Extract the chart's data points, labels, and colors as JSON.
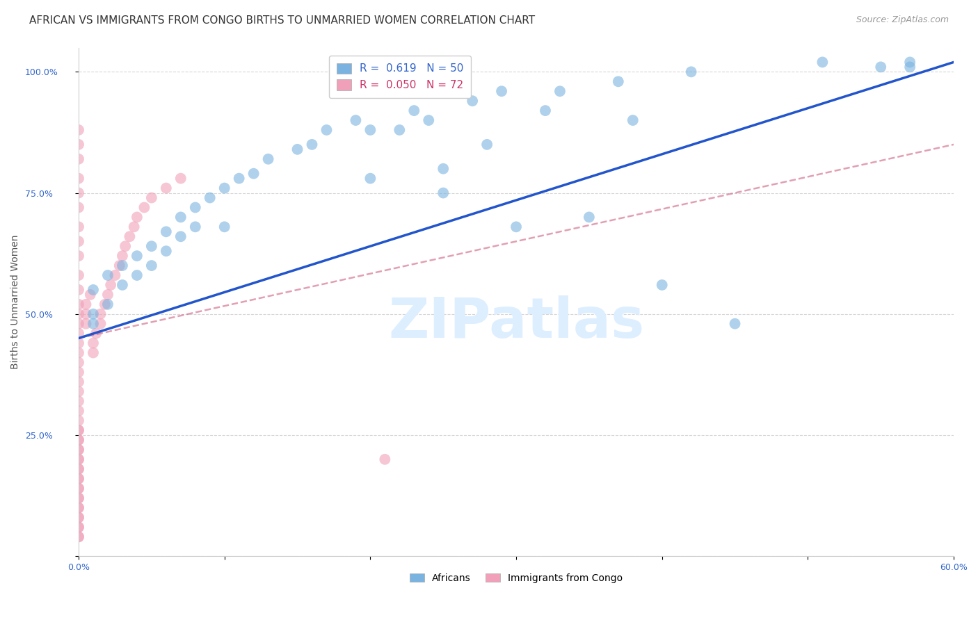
{
  "title": "AFRICAN VS IMMIGRANTS FROM CONGO BIRTHS TO UNMARRIED WOMEN CORRELATION CHART",
  "source": "Source: ZipAtlas.com",
  "ylabel": "Births to Unmarried Women",
  "x_min": 0.0,
  "x_max": 0.6,
  "y_min": 0.0,
  "y_max": 1.05,
  "x_tick_positions": [
    0.0,
    0.1,
    0.2,
    0.3,
    0.4,
    0.5,
    0.6
  ],
  "x_tick_labels": [
    "0.0%",
    "",
    "",
    "",
    "",
    "",
    "60.0%"
  ],
  "y_tick_positions": [
    0.0,
    0.25,
    0.5,
    0.75,
    1.0
  ],
  "y_tick_labels": [
    "",
    "25.0%",
    "50.0%",
    "75.0%",
    "100.0%"
  ],
  "legend_r_entries": [
    {
      "label": "R =  0.619   N = 50",
      "color": "#5b9bd5"
    },
    {
      "label": "R =  0.050   N = 72",
      "color": "#ee7fa0"
    }
  ],
  "blue_color": "#7ab3e0",
  "pink_color": "#f0a0b8",
  "blue_line_color": "#2255cc",
  "pink_line_color": "#d06080",
  "grid_color": "#cccccc",
  "background_color": "#ffffff",
  "watermark": "ZIPatlas",
  "watermark_color": "#ddeeff",
  "title_fontsize": 11,
  "axis_label_fontsize": 10,
  "tick_fontsize": 9,
  "legend_fontsize": 11,
  "source_fontsize": 9,
  "af_x": [
    0.01,
    0.01,
    0.01,
    0.02,
    0.02,
    0.03,
    0.03,
    0.04,
    0.04,
    0.05,
    0.05,
    0.06,
    0.06,
    0.07,
    0.07,
    0.08,
    0.08,
    0.09,
    0.1,
    0.1,
    0.11,
    0.12,
    0.13,
    0.15,
    0.16,
    0.17,
    0.19,
    0.2,
    0.22,
    0.23,
    0.24,
    0.25,
    0.27,
    0.29,
    0.3,
    0.33,
    0.35,
    0.37,
    0.4,
    0.42,
    0.45,
    0.51,
    0.55,
    0.57,
    0.57,
    0.2,
    0.25,
    0.28,
    0.32,
    0.38
  ],
  "af_y": [
    0.5,
    0.55,
    0.48,
    0.58,
    0.52,
    0.6,
    0.56,
    0.62,
    0.58,
    0.64,
    0.6,
    0.67,
    0.63,
    0.7,
    0.66,
    0.68,
    0.72,
    0.74,
    0.76,
    0.68,
    0.78,
    0.79,
    0.82,
    0.84,
    0.85,
    0.88,
    0.9,
    0.78,
    0.88,
    0.92,
    0.9,
    0.75,
    0.94,
    0.96,
    0.68,
    0.96,
    0.7,
    0.98,
    0.56,
    1.0,
    0.48,
    1.02,
    1.01,
    1.02,
    1.01,
    0.88,
    0.8,
    0.85,
    0.92,
    0.9
  ],
  "co_x": [
    0.0,
    0.0,
    0.0,
    0.0,
    0.0,
    0.0,
    0.0,
    0.0,
    0.0,
    0.0,
    0.0,
    0.0,
    0.0,
    0.0,
    0.0,
    0.0,
    0.0,
    0.0,
    0.0,
    0.0,
    0.0,
    0.0,
    0.0,
    0.0,
    0.0,
    0.0,
    0.0,
    0.0,
    0.0,
    0.0,
    0.0,
    0.0,
    0.0,
    0.0,
    0.0,
    0.0,
    0.0,
    0.0,
    0.0,
    0.0,
    0.0,
    0.0,
    0.0,
    0.0,
    0.0,
    0.0,
    0.0,
    0.0,
    0.005,
    0.005,
    0.005,
    0.008,
    0.01,
    0.01,
    0.012,
    0.015,
    0.015,
    0.018,
    0.02,
    0.022,
    0.025,
    0.028,
    0.03,
    0.032,
    0.035,
    0.038,
    0.04,
    0.045,
    0.05,
    0.06,
    0.07,
    0.21
  ],
  "co_y": [
    0.85,
    0.88,
    0.82,
    0.78,
    0.75,
    0.72,
    0.68,
    0.65,
    0.62,
    0.58,
    0.55,
    0.52,
    0.5,
    0.48,
    0.46,
    0.44,
    0.42,
    0.4,
    0.38,
    0.36,
    0.34,
    0.32,
    0.3,
    0.28,
    0.26,
    0.24,
    0.22,
    0.2,
    0.18,
    0.16,
    0.14,
    0.12,
    0.1,
    0.08,
    0.06,
    0.04,
    0.04,
    0.06,
    0.08,
    0.1,
    0.12,
    0.14,
    0.16,
    0.18,
    0.2,
    0.22,
    0.24,
    0.26,
    0.48,
    0.5,
    0.52,
    0.54,
    0.42,
    0.44,
    0.46,
    0.48,
    0.5,
    0.52,
    0.54,
    0.56,
    0.58,
    0.6,
    0.62,
    0.64,
    0.66,
    0.68,
    0.7,
    0.72,
    0.74,
    0.76,
    0.78,
    0.2
  ]
}
